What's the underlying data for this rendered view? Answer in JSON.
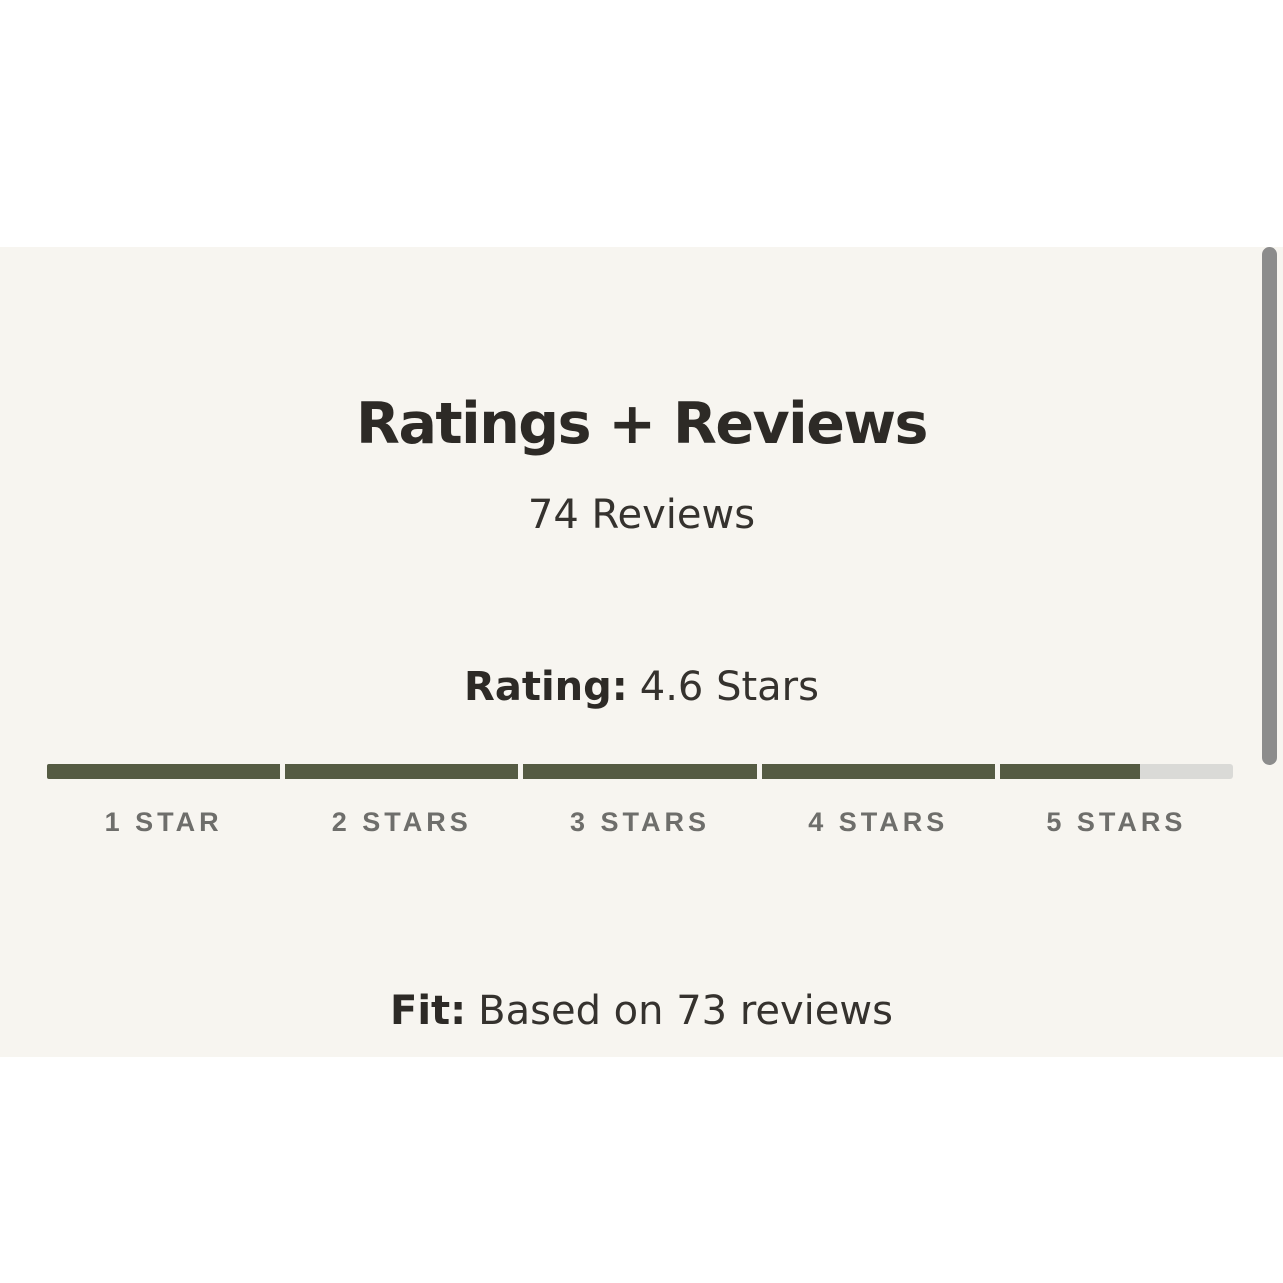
{
  "ratings_section": {
    "title": "Ratings + Reviews",
    "review_count_text": "74 Reviews",
    "rating_line": {
      "label": "Rating:",
      "value": "4.6 Stars"
    },
    "rating_value": 4.6,
    "rating_max": 5,
    "bar": {
      "segments": [
        {
          "label": "1 STAR",
          "fill_pct": 100
        },
        {
          "label": "2 STARS",
          "fill_pct": 100
        },
        {
          "label": "3 STARS",
          "fill_pct": 100
        },
        {
          "label": "4 STARS",
          "fill_pct": 100
        },
        {
          "label": "5 STARS",
          "fill_pct": 60
        }
      ]
    },
    "fit_line": {
      "label": "Fit:",
      "value": "Based on 73 reviews"
    }
  },
  "colors": {
    "page_bg": "#ffffff",
    "panel_bg": "#f7f5f0",
    "title_text": "#2d2a26",
    "body_text": "#35322e",
    "segment_label_text": "#6e6e6b",
    "bar_fill": "#555b43",
    "bar_track": "#dadad7",
    "scrollbar_thumb": "#8c8c8c"
  }
}
